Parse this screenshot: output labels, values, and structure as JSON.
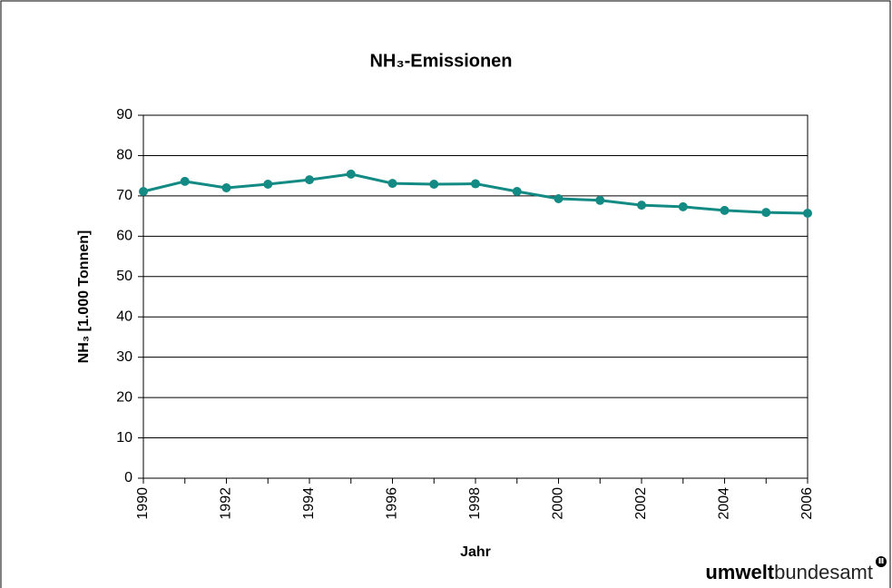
{
  "chart_data": {
    "type": "line",
    "title": "NH₃-Emissionen",
    "x_label": "Jahr",
    "y_label": "NH₃ [1.000 Tonnen]",
    "x": [
      1990,
      1991,
      1992,
      1993,
      1994,
      1995,
      1996,
      1997,
      1998,
      1999,
      2000,
      2001,
      2002,
      2003,
      2004,
      2005,
      2006
    ],
    "series": [
      {
        "name": "NH₃",
        "color": "#138a84",
        "values": [
          71.1,
          73.6,
          72.0,
          72.9,
          74.0,
          75.4,
          73.1,
          72.9,
          73.0,
          71.1,
          69.3,
          68.9,
          67.7,
          67.3,
          66.4,
          65.9,
          65.7
        ]
      }
    ],
    "xlim": [
      1990,
      2006
    ],
    "xticks": [
      1990,
      1992,
      1994,
      1996,
      1998,
      2000,
      2002,
      2004,
      2006
    ],
    "ylim": [
      0,
      90
    ],
    "yticks": [
      0,
      10,
      20,
      30,
      40,
      50,
      60,
      70,
      80,
      90
    ],
    "grid": true,
    "legend": false
  },
  "logo": [
    "umwelt",
    "bundesamt"
  ]
}
